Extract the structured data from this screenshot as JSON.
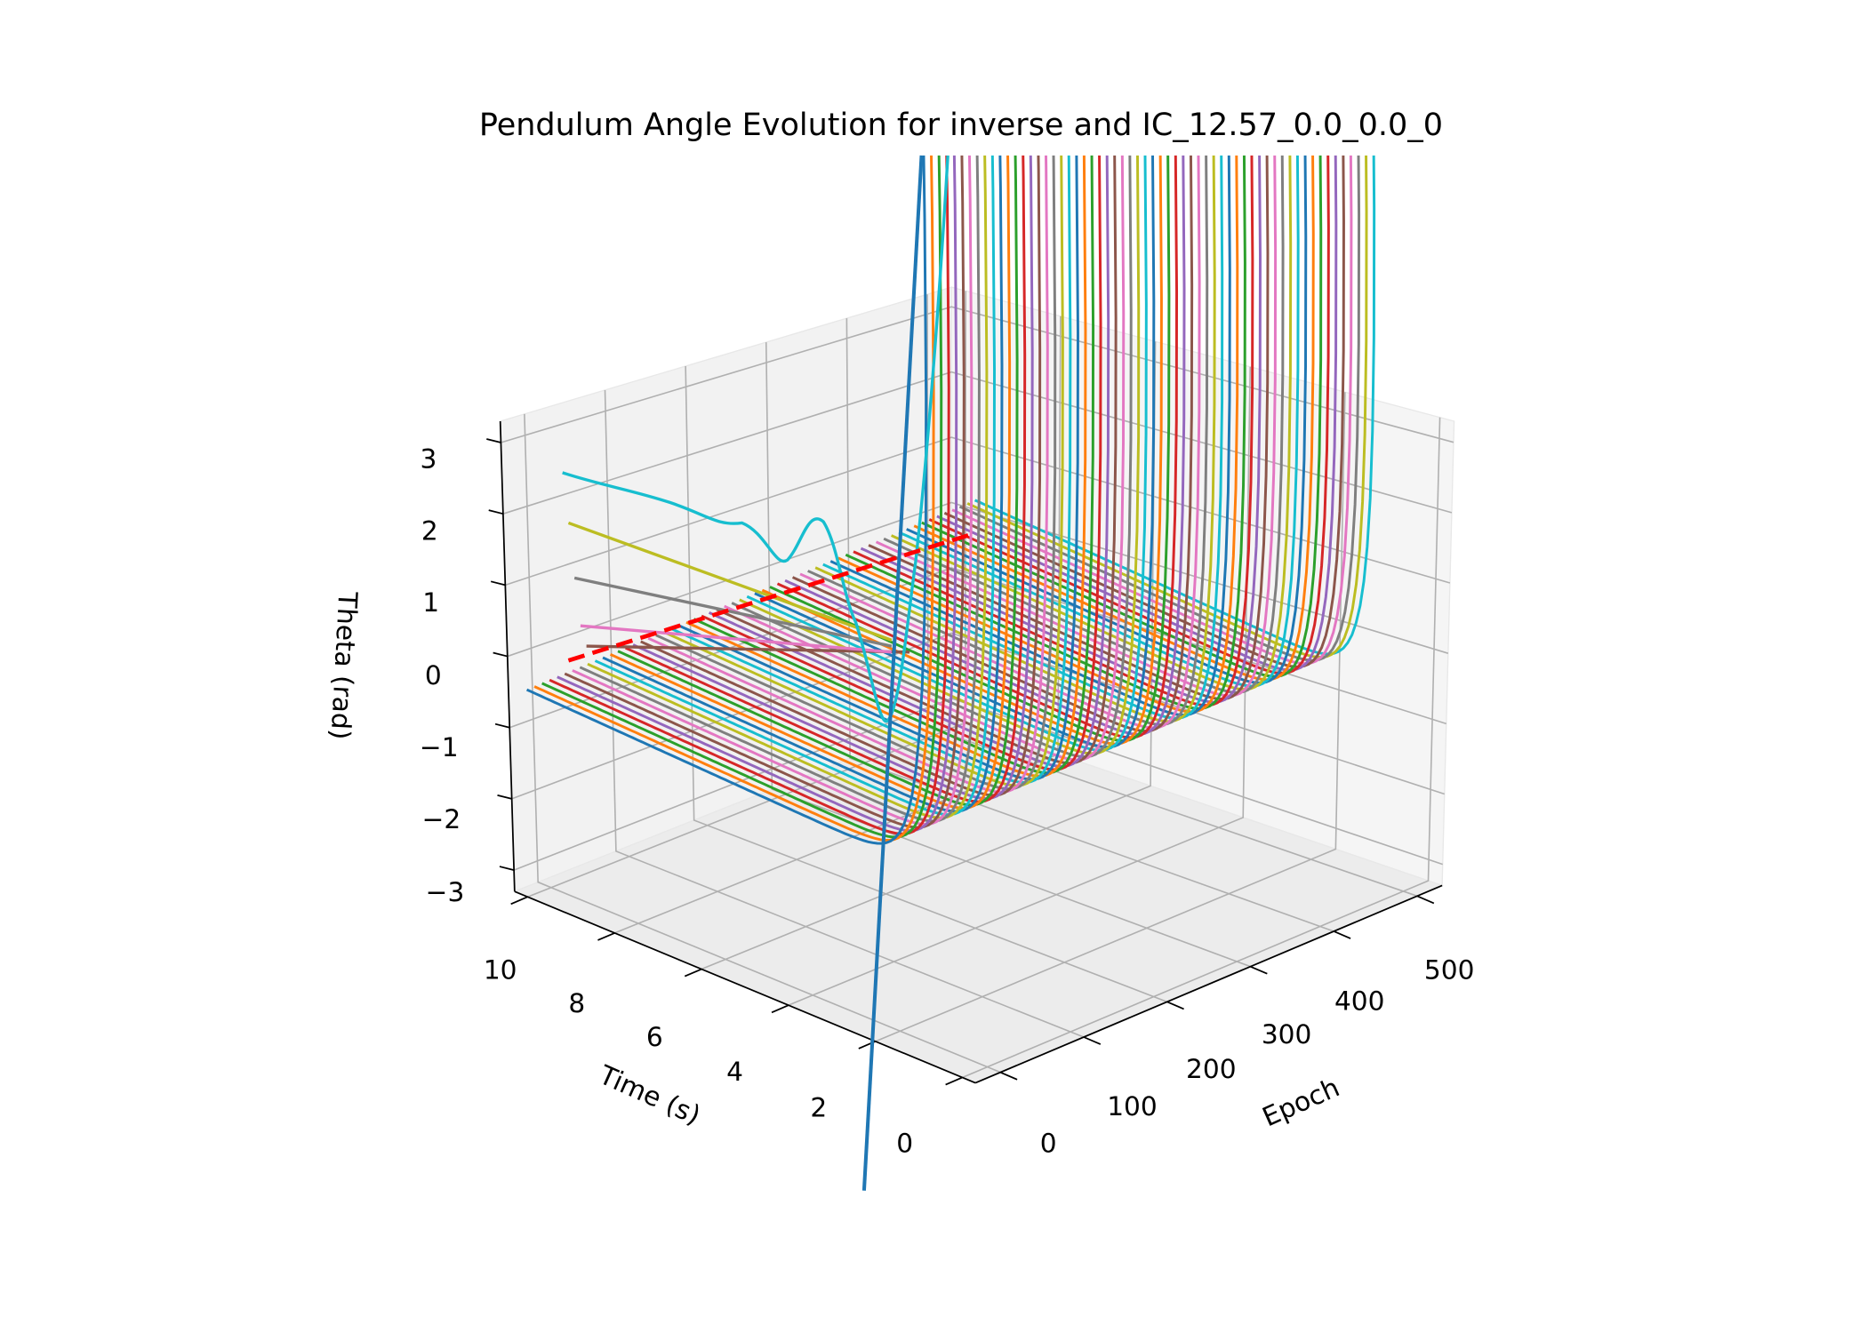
{
  "chart_data": {
    "type": "line",
    "projection": "3d",
    "title": "Pendulum Angle Evolution for inverse and IC_12.57_0.0_0.0_0",
    "xlabel": "Time (s)",
    "ylabel": "Epoch",
    "zlabel": "Theta (rad)",
    "xlim": [
      0,
      10
    ],
    "ylim": [
      0,
      500
    ],
    "zlim": [
      -3,
      3
    ],
    "x_ticks": [
      "0",
      "2",
      "4",
      "6",
      "8",
      "10"
    ],
    "y_ticks": [
      "0",
      "100",
      "200",
      "300",
      "400",
      "500"
    ],
    "z_ticks": [
      "−3",
      "−2",
      "−1",
      "0",
      "1",
      "2",
      "3"
    ],
    "grid": true,
    "series": [
      {
        "name": "epoch predictions",
        "count_approx": 60,
        "epoch_range": [
          20,
          500
        ],
        "description": "family of trajectories starting near 0 rad at t=10 and rising sharply above 3 rad as t approaches 0"
      },
      {
        "name": "reference (red dashed)",
        "style": "dashed",
        "color": "#ff0000"
      }
    ],
    "colors": [
      "#1f77b4",
      "#ff7f0e",
      "#2ca02c",
      "#d62728",
      "#9467bd",
      "#8c564b",
      "#e377c2",
      "#7f7f7f",
      "#bcbd22",
      "#17becf"
    ]
  }
}
